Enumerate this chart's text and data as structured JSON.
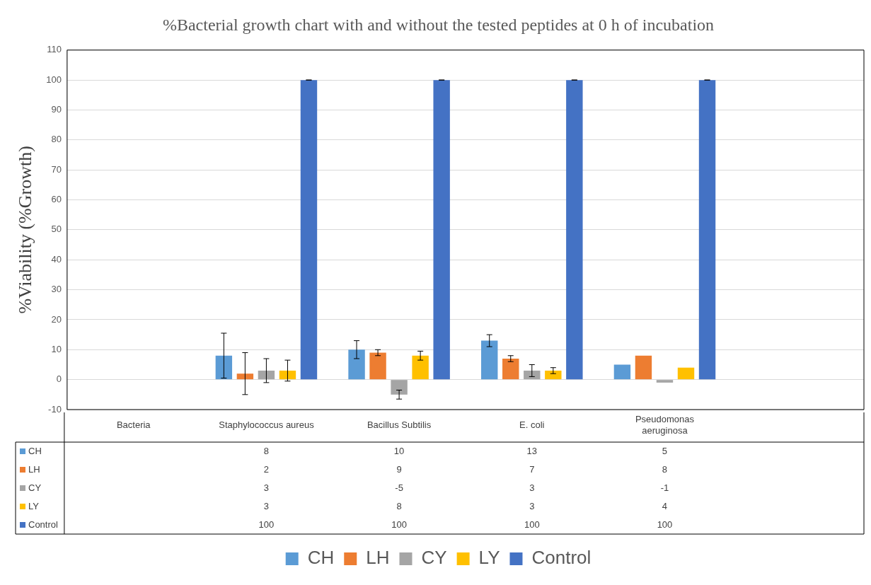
{
  "chart_data": {
    "type": "bar",
    "title": "%Bacterial growth chart with and without the tested peptides at 0 h of incubation",
    "ylabel": "%Viability (%Growth)",
    "categories": [
      "Bacteria",
      "Staphylococcus aureus",
      "Bacillus Subtilis",
      "E. coli",
      "Pseudomonas aeruginosa",
      null
    ],
    "series": [
      {
        "name": "CH",
        "color": "#5b9bd5",
        "values": [
          null,
          8,
          10,
          13,
          5,
          null
        ],
        "errors": [
          null,
          7.5,
          3,
          2,
          null,
          null
        ]
      },
      {
        "name": "LH",
        "color": "#ed7d31",
        "values": [
          null,
          2,
          9,
          7,
          8,
          null
        ],
        "errors": [
          null,
          7,
          1,
          1,
          null,
          null
        ]
      },
      {
        "name": "CY",
        "color": "#a5a5a5",
        "values": [
          null,
          3,
          -5,
          3,
          -1,
          null
        ],
        "errors": [
          null,
          4,
          1.5,
          2,
          null,
          null
        ]
      },
      {
        "name": "LY",
        "color": "#ffc000",
        "values": [
          null,
          3,
          8,
          3,
          4,
          null
        ],
        "errors": [
          null,
          3.5,
          1.5,
          1,
          null,
          null
        ]
      },
      {
        "name": "Control",
        "color": "#4472c4",
        "values": [
          null,
          100,
          100,
          100,
          100,
          null
        ],
        "errors": [
          null,
          0,
          0,
          0,
          0,
          null
        ]
      }
    ],
    "ylim": [
      -10,
      110
    ],
    "yticks": [
      -10,
      0,
      10,
      20,
      30,
      40,
      50,
      60,
      70,
      80,
      90,
      100,
      110
    ],
    "grid": "y",
    "legend": "bottom",
    "data_labels": true
  }
}
